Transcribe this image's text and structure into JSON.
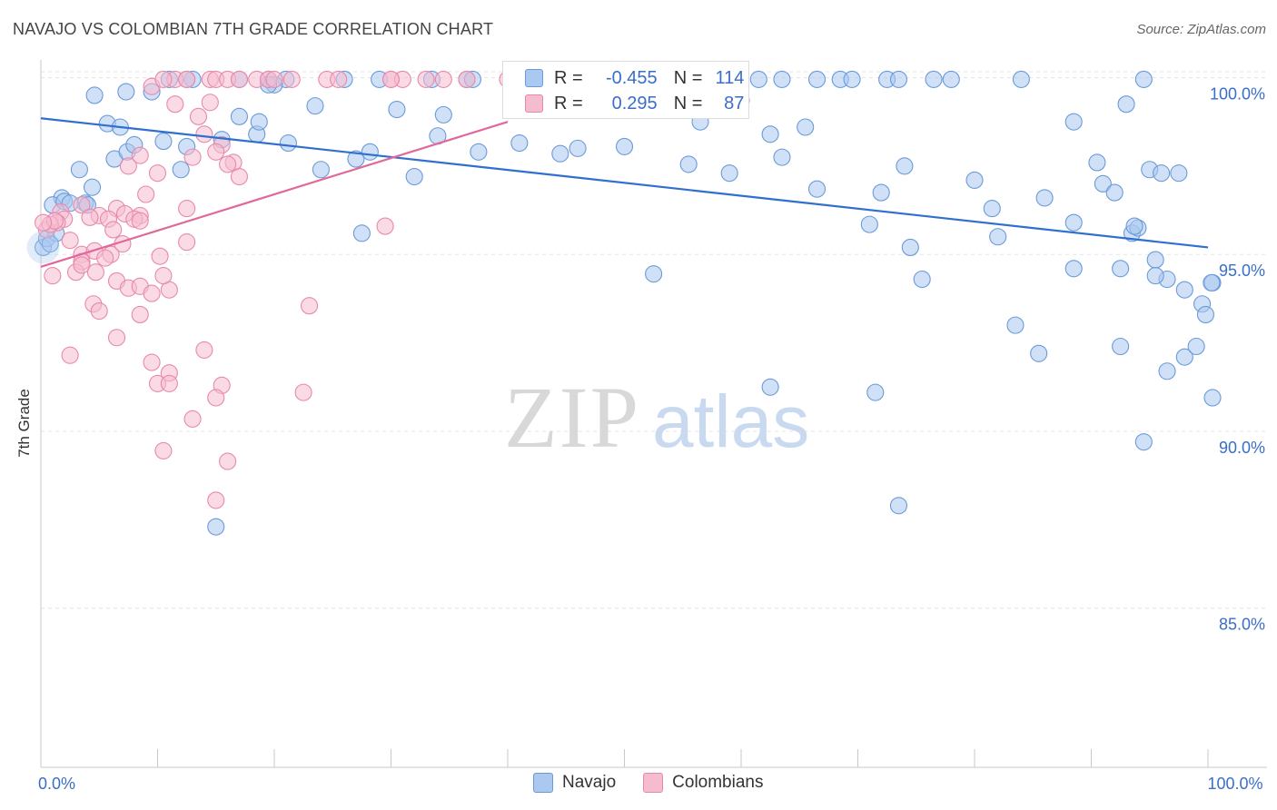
{
  "title": "NAVAJO VS COLOMBIAN 7TH GRADE CORRELATION CHART",
  "source": "Source: ZipAtlas.com",
  "watermark": {
    "zip": "ZIP",
    "atlas": "atlas"
  },
  "colors": {
    "navajo_fill": "#aac8f0",
    "navajo_stroke": "#6a9ad8",
    "navajo_line": "#2f6fd0",
    "colombian_fill": "#f5bcd0",
    "colombian_stroke": "#e889aa",
    "colombian_line": "#e0689a"
  },
  "legend": {
    "rows": [
      {
        "r_label": "R =",
        "r_value": "-0.455",
        "n_label": "N =",
        "n_value": "114"
      },
      {
        "r_label": "R =",
        "r_value": "0.295",
        "n_label": "N =",
        "n_value": "87"
      }
    ]
  },
  "bottom_legend": [
    "Navajo",
    "Colombians"
  ],
  "chart_data": {
    "type": "scatter",
    "ylabel": "7th Grade",
    "xlim": [
      0,
      100
    ],
    "ylim": [
      80.5,
      100.5
    ],
    "y_ticks": [
      {
        "value": 100,
        "label": "100.0%"
      },
      {
        "value": 95,
        "label": "95.0%"
      },
      {
        "value": 90,
        "label": "90.0%"
      },
      {
        "value": 85,
        "label": "85.0%"
      }
    ],
    "x_ticks": [
      {
        "value": 0,
        "label": "0.0%"
      },
      {
        "value": 100,
        "label": "100.0%"
      }
    ],
    "grid": true,
    "series": [
      {
        "name": "Navajo",
        "trend": {
          "x": [
            0,
            100
          ],
          "y": [
            98.85,
            95.2
          ]
        },
        "points": [
          [
            11,
            99.95
          ],
          [
            13,
            99.95
          ],
          [
            17,
            99.95
          ],
          [
            21,
            99.95
          ],
          [
            26,
            99.95
          ],
          [
            29,
            99.95
          ],
          [
            36.5,
            99.95
          ],
          [
            37,
            99.95
          ],
          [
            43.5,
            99.95
          ],
          [
            45,
            99.95
          ],
          [
            59,
            99.95
          ],
          [
            61.5,
            99.95
          ],
          [
            63.5,
            99.95
          ],
          [
            68.5,
            99.95
          ],
          [
            69.5,
            99.95
          ],
          [
            72.5,
            99.95
          ],
          [
            76.5,
            99.95
          ],
          [
            78,
            99.95
          ],
          [
            84,
            99.95
          ],
          [
            94.5,
            99.95
          ],
          [
            12.5,
            99.95
          ],
          [
            19.5,
            99.95
          ],
          [
            33.5,
            99.95
          ],
          [
            66.5,
            99.95
          ],
          [
            73.5,
            99.95
          ],
          [
            20,
            99.8
          ],
          [
            19.5,
            99.8
          ],
          [
            4.6,
            99.5
          ],
          [
            9.5,
            99.6
          ],
          [
            7.3,
            99.6
          ],
          [
            17,
            98.9
          ],
          [
            23.5,
            99.2
          ],
          [
            30.5,
            99.1
          ],
          [
            34.5,
            98.95
          ],
          [
            57,
            99.25
          ],
          [
            60,
            99.35
          ],
          [
            56.5,
            98.75
          ],
          [
            62.5,
            98.4
          ],
          [
            65.5,
            98.6
          ],
          [
            93,
            99.25
          ],
          [
            88.5,
            98.75
          ],
          [
            1.8,
            96.6
          ],
          [
            3.3,
            97.4
          ],
          [
            4.4,
            96.9
          ],
          [
            3.8,
            96.45
          ],
          [
            6.3,
            97.7
          ],
          [
            7.4,
            97.9
          ],
          [
            5.7,
            98.7
          ],
          [
            6.8,
            98.6
          ],
          [
            8,
            98.1
          ],
          [
            10.5,
            98.2
          ],
          [
            12,
            97.4
          ],
          [
            12.5,
            98.05
          ],
          [
            15.5,
            98.25
          ],
          [
            18.5,
            98.4
          ],
          [
            18.7,
            98.75
          ],
          [
            21.2,
            98.15
          ],
          [
            24,
            97.4
          ],
          [
            27,
            97.7
          ],
          [
            28.2,
            97.9
          ],
          [
            32,
            97.2
          ],
          [
            34,
            98.35
          ],
          [
            37.5,
            97.9
          ],
          [
            41,
            98.15
          ],
          [
            44.5,
            97.85
          ],
          [
            46,
            98.0
          ],
          [
            50,
            98.05
          ],
          [
            55.5,
            97.55
          ],
          [
            59,
            97.3
          ],
          [
            63.5,
            97.75
          ],
          [
            66.5,
            96.85
          ],
          [
            72,
            96.75
          ],
          [
            74,
            97.5
          ],
          [
            80,
            97.1
          ],
          [
            81.5,
            96.3
          ],
          [
            86,
            96.6
          ],
          [
            90.5,
            97.6
          ],
          [
            91,
            97.0
          ],
          [
            92,
            96.75
          ],
          [
            95,
            97.4
          ],
          [
            96,
            97.3
          ],
          [
            97.5,
            97.3
          ],
          [
            1,
            96.4
          ],
          [
            2,
            96.5
          ],
          [
            2.5,
            96.45
          ],
          [
            4,
            96.4
          ],
          [
            27.5,
            95.6
          ],
          [
            71,
            95.85
          ],
          [
            82,
            95.5
          ],
          [
            88.5,
            95.9
          ],
          [
            93.5,
            95.6
          ],
          [
            94,
            95.75
          ],
          [
            93.7,
            95.8
          ],
          [
            74.5,
            95.2
          ],
          [
            95.5,
            94.85
          ],
          [
            96.5,
            94.3
          ],
          [
            101,
            94.2
          ],
          [
            100.3,
            94.2
          ],
          [
            98,
            94.0
          ],
          [
            99.5,
            93.6
          ],
          [
            99.8,
            93.3
          ],
          [
            75.5,
            94.3
          ],
          [
            88.5,
            94.6
          ],
          [
            92.5,
            94.6
          ],
          [
            95.5,
            94.4
          ],
          [
            52.5,
            94.45
          ],
          [
            83.5,
            93.0
          ],
          [
            85.5,
            92.2
          ],
          [
            92.5,
            92.4
          ],
          [
            98,
            92.1
          ],
          [
            96.5,
            91.7
          ],
          [
            99,
            92.4
          ],
          [
            62.5,
            91.25
          ],
          [
            71.5,
            91.1
          ],
          [
            100.5,
            90.95
          ],
          [
            94.5,
            89.7
          ],
          [
            73.5,
            87.9
          ],
          [
            15,
            87.3
          ],
          [
            0.2,
            95.2
          ],
          [
            0.5,
            95.45
          ],
          [
            1.3,
            95.6
          ],
          [
            0.8,
            95.3
          ]
        ]
      },
      {
        "name": "Colombians",
        "trend": {
          "x": [
            0,
            40
          ],
          "y": [
            94.65,
            98.75
          ]
        },
        "points": [
          [
            11.5,
            99.95
          ],
          [
            14.5,
            99.95
          ],
          [
            15,
            99.95
          ],
          [
            16,
            99.95
          ],
          [
            17,
            99.95
          ],
          [
            18.5,
            99.95
          ],
          [
            19.5,
            99.95
          ],
          [
            20,
            99.95
          ],
          [
            21.5,
            99.95
          ],
          [
            24.5,
            99.95
          ],
          [
            30,
            99.95
          ],
          [
            31,
            99.95
          ],
          [
            33,
            99.95
          ],
          [
            34.5,
            99.95
          ],
          [
            36.5,
            99.95
          ],
          [
            40,
            99.95
          ],
          [
            12.5,
            99.95
          ],
          [
            25.5,
            99.95
          ],
          [
            9.5,
            99.75
          ],
          [
            11.5,
            99.25
          ],
          [
            14.5,
            99.3
          ],
          [
            13.5,
            98.9
          ],
          [
            14,
            98.4
          ],
          [
            15.5,
            98.1
          ],
          [
            13,
            97.75
          ],
          [
            15,
            97.9
          ],
          [
            16.5,
            97.6
          ],
          [
            17,
            97.2
          ],
          [
            16,
            97.55
          ],
          [
            7.5,
            97.5
          ],
          [
            8.5,
            97.8
          ],
          [
            10,
            97.3
          ],
          [
            6.5,
            96.3
          ],
          [
            8.5,
            96.1
          ],
          [
            9,
            96.7
          ],
          [
            12.5,
            96.3
          ],
          [
            5,
            96.1
          ],
          [
            5.8,
            96.0
          ],
          [
            7.2,
            96.15
          ],
          [
            8,
            96.0
          ],
          [
            8.5,
            95.95
          ],
          [
            1.7,
            96.2
          ],
          [
            2,
            96.0
          ],
          [
            3.5,
            96.4
          ],
          [
            4.2,
            96.05
          ],
          [
            6.2,
            95.7
          ],
          [
            2.5,
            95.4
          ],
          [
            3.5,
            95.0
          ],
          [
            4.6,
            95.1
          ],
          [
            1.4,
            95.9
          ],
          [
            0.5,
            95.7
          ],
          [
            0.8,
            95.85
          ],
          [
            1.2,
            95.95
          ],
          [
            0.2,
            95.9
          ],
          [
            3.5,
            94.8
          ],
          [
            6,
            95.0
          ],
          [
            7,
            95.3
          ],
          [
            5.5,
            94.9
          ],
          [
            10.2,
            94.95
          ],
          [
            12.5,
            95.35
          ],
          [
            1,
            94.4
          ],
          [
            3,
            94.5
          ],
          [
            3.5,
            94.7
          ],
          [
            4.7,
            94.5
          ],
          [
            6.5,
            94.25
          ],
          [
            7.5,
            94.05
          ],
          [
            8.5,
            94.1
          ],
          [
            9.5,
            93.9
          ],
          [
            11,
            94.0
          ],
          [
            10.5,
            94.4
          ],
          [
            4.5,
            93.6
          ],
          [
            5,
            93.4
          ],
          [
            8.5,
            93.3
          ],
          [
            23,
            93.55
          ],
          [
            6.5,
            92.65
          ],
          [
            2.5,
            92.15
          ],
          [
            9.5,
            91.95
          ],
          [
            11,
            91.65
          ],
          [
            14,
            92.3
          ],
          [
            10,
            91.35
          ],
          [
            11,
            91.35
          ],
          [
            15.5,
            91.3
          ],
          [
            15,
            90.95
          ],
          [
            22.5,
            91.1
          ],
          [
            13,
            90.35
          ],
          [
            10.5,
            89.45
          ],
          [
            16,
            89.15
          ],
          [
            15,
            88.05
          ],
          [
            29.5,
            95.8
          ],
          [
            30,
            99.95
          ],
          [
            10.5,
            99.95
          ]
        ]
      }
    ]
  }
}
